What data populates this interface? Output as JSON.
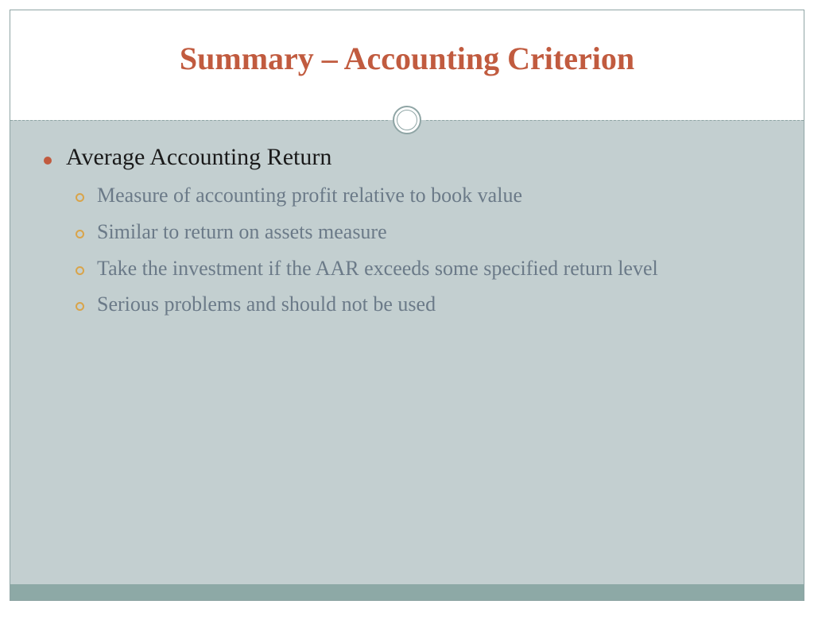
{
  "slide": {
    "title": "Summary – Accounting Criterion",
    "main_bullet": "Average Accounting Return",
    "sub_bullets": [
      "Measure of accounting profit relative to book value",
      "Similar to return on assets measure",
      "Take the investment if the AAR exceeds some specified return level",
      "Serious problems and should not be used"
    ],
    "colors": {
      "title_color": "#c15b3f",
      "body_bg": "#c3cfd0",
      "footer_bar": "#8da9a6",
      "border": "#8fa5a5",
      "main_bullet_dot": "#c15b3f",
      "sub_bullet_ring": "#d9a44a",
      "main_text": "#1a1a1a",
      "sub_text": "#6b7a88"
    },
    "typography": {
      "title_size_pt": 40,
      "main_size_pt": 30,
      "sub_size_pt": 26,
      "font_family": "Georgia"
    }
  }
}
